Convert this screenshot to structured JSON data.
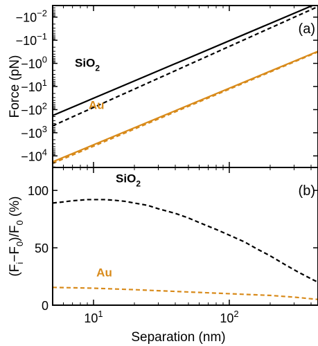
{
  "colors": {
    "sio2": "#000000",
    "au": "#d88a1a"
  },
  "chart_data": [
    {
      "type": "line",
      "panel_label": "(a)",
      "xlabel": "",
      "ylabel": "Force (pN)",
      "x_scale": "log",
      "y_scale": "log",
      "y_inverted": true,
      "xlim": [
        5,
        450
      ],
      "ylim_abs": [
        0.00316,
        31623
      ],
      "x_ticks": [
        10,
        100
      ],
      "x_tick_labels": [
        "",
        ""
      ],
      "y_ticks_abs": [
        0.01,
        0.1,
        1,
        10,
        100,
        1000,
        10000
      ],
      "y_tick_labels": [
        {
          "base": "−10",
          "exp": "−2"
        },
        {
          "base": "−10",
          "exp": "−1"
        },
        {
          "base": "−10",
          "exp": "0"
        },
        {
          "base": "−10",
          "exp": "1"
        },
        {
          "base": "−10",
          "exp": "2"
        },
        {
          "base": "−10",
          "exp": "3"
        },
        {
          "base": "−10",
          "exp": "4"
        }
      ],
      "series_labels": [
        {
          "name": "SiO",
          "sub": "2",
          "x": 9.0,
          "y_abs": 1.4,
          "color": "#000000"
        },
        {
          "name": "Au",
          "x": 10.5,
          "y_abs": 95,
          "color": "#d88a1a"
        }
      ],
      "series": [
        {
          "key": "sio2_solid",
          "color": "#000000",
          "dashed": false,
          "x": [
            5,
            450
          ],
          "y_abs": [
            180,
            0.0025
          ]
        },
        {
          "key": "sio2_dashed",
          "color": "#000000",
          "dashed": true,
          "x": [
            5,
            450
          ],
          "y_abs": [
            500,
            0.0035
          ]
        },
        {
          "key": "au_solid",
          "color": "#d88a1a",
          "dashed": false,
          "x": [
            5,
            450
          ],
          "y_abs": [
            18000,
            0.3
          ]
        },
        {
          "key": "au_dashed",
          "color": "#d88a1a",
          "dashed": true,
          "x": [
            5,
            450
          ],
          "y_abs": [
            21000,
            0.32
          ]
        }
      ]
    },
    {
      "type": "line",
      "panel_label": "(b)",
      "xlabel": "Separation (nm)",
      "ylabel": "(Fᵢ−F₀)/F₀ (%)",
      "ylabel_parts": {
        "open": "(F",
        "sub1": "i",
        "mid": "−F",
        "sub2": "0",
        "close": ")/F",
        "sub3": "0",
        "unit": " (%)"
      },
      "x_scale": "log",
      "xlim": [
        5,
        450
      ],
      "ylim": [
        0,
        120
      ],
      "x_ticks": [
        10,
        100
      ],
      "x_tick_labels": [
        {
          "base": "10",
          "exp": "1"
        },
        {
          "base": "10",
          "exp": "2"
        }
      ],
      "y_ticks": [
        0,
        50,
        100
      ],
      "y_tick_labels": [
        "0",
        "50",
        "100"
      ],
      "series_labels": [
        {
          "name": "SiO",
          "sub": "2",
          "x": 18,
          "y": 107,
          "color": "#000000"
        },
        {
          "name": "Au",
          "x": 12,
          "y": 25,
          "color": "#d88a1a"
        }
      ],
      "series": [
        {
          "key": "sio2",
          "color": "#000000",
          "dashed": true,
          "x": [
            5,
            6,
            7,
            8,
            9,
            10,
            12,
            14,
            17,
            20,
            25,
            30,
            40,
            50,
            60,
            80,
            100,
            130,
            160,
            200,
            260,
            320,
            400,
            450
          ],
          "y": [
            89,
            90,
            91,
            91.5,
            92,
            92,
            92,
            91.5,
            90.5,
            89,
            87,
            84,
            80,
            76,
            72,
            66,
            61,
            55,
            49,
            43,
            35,
            29,
            23,
            20
          ]
        },
        {
          "key": "au",
          "color": "#d88a1a",
          "dashed": true,
          "x": [
            5,
            10,
            20,
            50,
            100,
            200,
            300,
            450
          ],
          "y": [
            15.5,
            14.8,
            13.5,
            11.5,
            10,
            8.5,
            7,
            5
          ]
        }
      ]
    }
  ]
}
